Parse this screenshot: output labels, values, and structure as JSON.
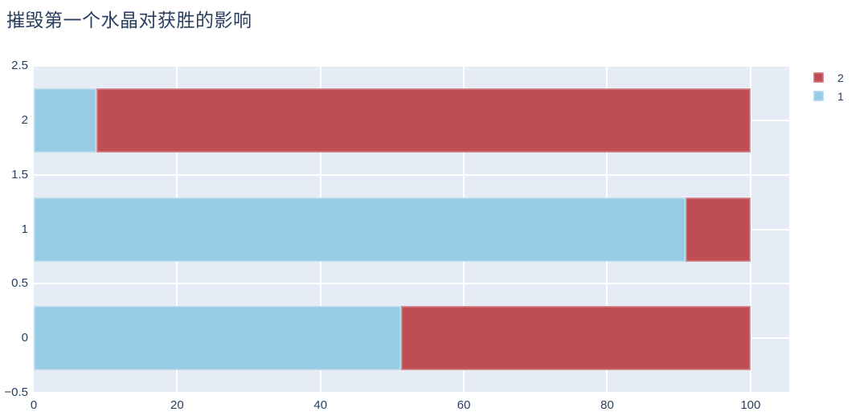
{
  "title": {
    "text": "摧毁第一个水晶对获胜的影响",
    "color": "#2a3f5f"
  },
  "legend": {
    "items": [
      {
        "label": "2",
        "color": "#bf4e54"
      },
      {
        "label": "1",
        "color": "#98cbe6"
      }
    ]
  },
  "chart_data": {
    "type": "bar",
    "orientation": "horizontal",
    "barmode": "stack",
    "title": "摧毁第一个水晶对获胜的影响",
    "categories": [
      0,
      1,
      2
    ],
    "series": [
      {
        "name": "1",
        "color": "#98cbe6",
        "values": [
          51.2,
          90.9,
          8.7
        ]
      },
      {
        "name": "2",
        "color": "#bf4e54",
        "values": [
          48.8,
          9.1,
          91.3
        ]
      }
    ],
    "xlabel": "",
    "ylabel": "",
    "xticks": [
      "0",
      "20",
      "40",
      "60",
      "80",
      "100"
    ],
    "xtick_values": [
      0,
      20,
      40,
      60,
      80,
      100
    ],
    "yticks": [
      "−0.5",
      "0",
      "0.5",
      "1",
      "1.5",
      "2",
      "2.5"
    ],
    "ytick_values": [
      -0.5,
      0,
      0.5,
      1,
      1.5,
      2,
      2.5
    ],
    "xrange": [
      0,
      105.4
    ],
    "yrange": [
      -0.5,
      2.5
    ],
    "bar_total": 100,
    "grid": true,
    "plot_bg": "#e5ecf6",
    "grid_color": "#ffffff",
    "text_color": "#2a3f5f",
    "legend_position": "top-right",
    "legend_order": [
      "2",
      "1"
    ]
  }
}
